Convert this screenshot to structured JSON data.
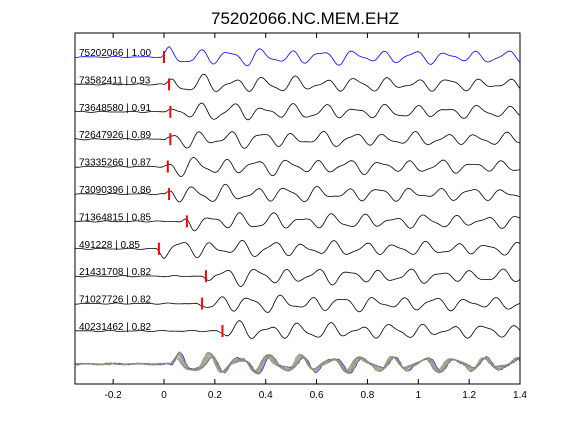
{
  "chart_data": {
    "type": "line",
    "title": "75202066.NC.MEM.EHZ",
    "xlabel": "",
    "ylabel": "",
    "xlim": [
      -0.35,
      1.4
    ],
    "x_ticks": [
      -0.2,
      0,
      0.2,
      0.4,
      0.6,
      0.8,
      1,
      1.2,
      1.4
    ],
    "x_tick_labels": [
      "-0.2",
      "0",
      "0.2",
      "0.4",
      "0.6",
      "0.8",
      "1",
      "1.2",
      "1.4"
    ],
    "grid": false,
    "legend": "none",
    "colors": {
      "reference_trace": "#0000ff",
      "trace": "#000000",
      "pick_marker": "#ff0000",
      "stack_trace": "#8c8c78"
    },
    "traces": [
      {
        "label": "75202066 | 1.00",
        "pick_time": 0.0,
        "reference": true
      },
      {
        "label": "73582411 | 0.93",
        "pick_time": 0.02,
        "reference": false
      },
      {
        "label": "73648580 | 0.91",
        "pick_time": 0.025,
        "reference": false
      },
      {
        "label": "72647926 | 0.89",
        "pick_time": 0.025,
        "reference": false
      },
      {
        "label": "73335266 | 0.87",
        "pick_time": 0.015,
        "reference": false
      },
      {
        "label": "73090396 | 0.86",
        "pick_time": 0.02,
        "reference": false
      },
      {
        "label": "71364815 | 0.85",
        "pick_time": 0.09,
        "reference": false
      },
      {
        "label": "491228 | 0.85",
        "pick_time": -0.02,
        "reference": false
      },
      {
        "label": "21431708 | 0.82",
        "pick_time": 0.165,
        "reference": false
      },
      {
        "label": "71027726 | 0.82",
        "pick_time": 0.15,
        "reference": false
      },
      {
        "label": "40231462 | 0.82",
        "pick_time": 0.23,
        "reference": false
      }
    ],
    "stack": {
      "trace_count": 11
    }
  }
}
